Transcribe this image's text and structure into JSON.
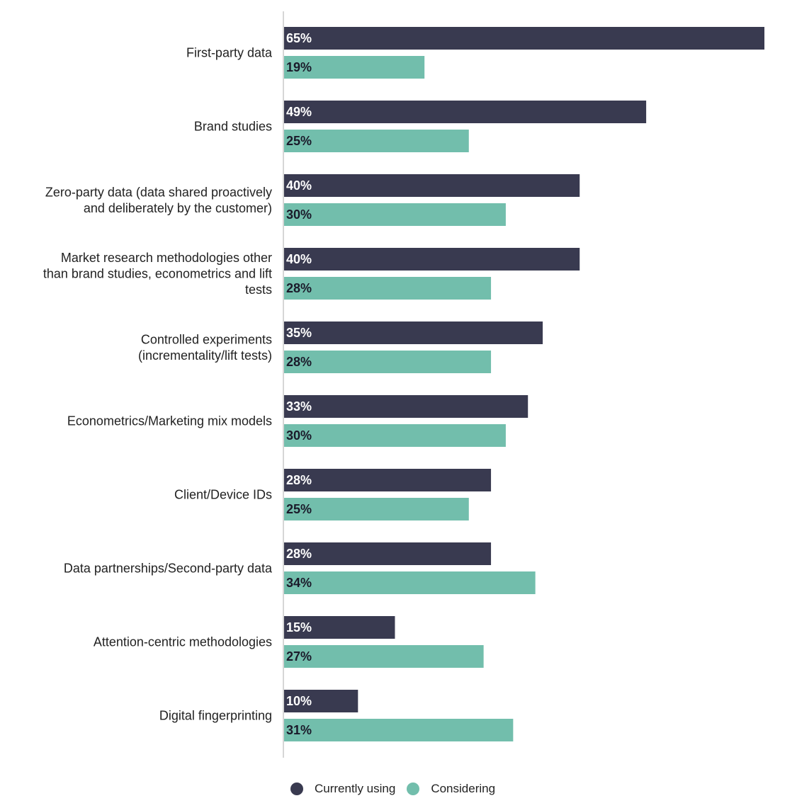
{
  "chart_data": {
    "type": "bar",
    "orientation": "horizontal",
    "categories": [
      [
        "First-party data"
      ],
      [
        "Brand studies"
      ],
      [
        "Zero-party data (data shared proactively",
        "and deliberately by the customer)"
      ],
      [
        "Market research methodologies other",
        "than brand studies, econometrics and lift",
        "tests"
      ],
      [
        "Controlled experiments",
        "(incrementality/lift tests)"
      ],
      [
        "Econometrics/Marketing mix models"
      ],
      [
        "Client/Device IDs"
      ],
      [
        "Data partnerships/Second-party data"
      ],
      [
        "Attention-centric methodologies"
      ],
      [
        "Digital fingerprinting"
      ]
    ],
    "series": [
      {
        "name": "Currently using",
        "color": "#393A50",
        "label_color": "#ffffff",
        "values": [
          65,
          49,
          40,
          40,
          35,
          33,
          28,
          28,
          15,
          10
        ],
        "labels": [
          "65%",
          "49%",
          "40%",
          "40%",
          "35%",
          "33%",
          "28%",
          "28%",
          "15%",
          "10%"
        ]
      },
      {
        "name": "Considering",
        "color": "#72BEAC",
        "label_color": "#1a1a2a",
        "values": [
          19,
          25,
          30,
          28,
          28,
          30,
          25,
          34,
          27,
          31
        ],
        "labels": [
          "19%",
          "25%",
          "30%",
          "28%",
          "28%",
          "30%",
          "25%",
          "34%",
          "27%",
          "31%"
        ]
      }
    ],
    "xlim": [
      0,
      65
    ],
    "grid": false,
    "legend_position": "bottom"
  }
}
